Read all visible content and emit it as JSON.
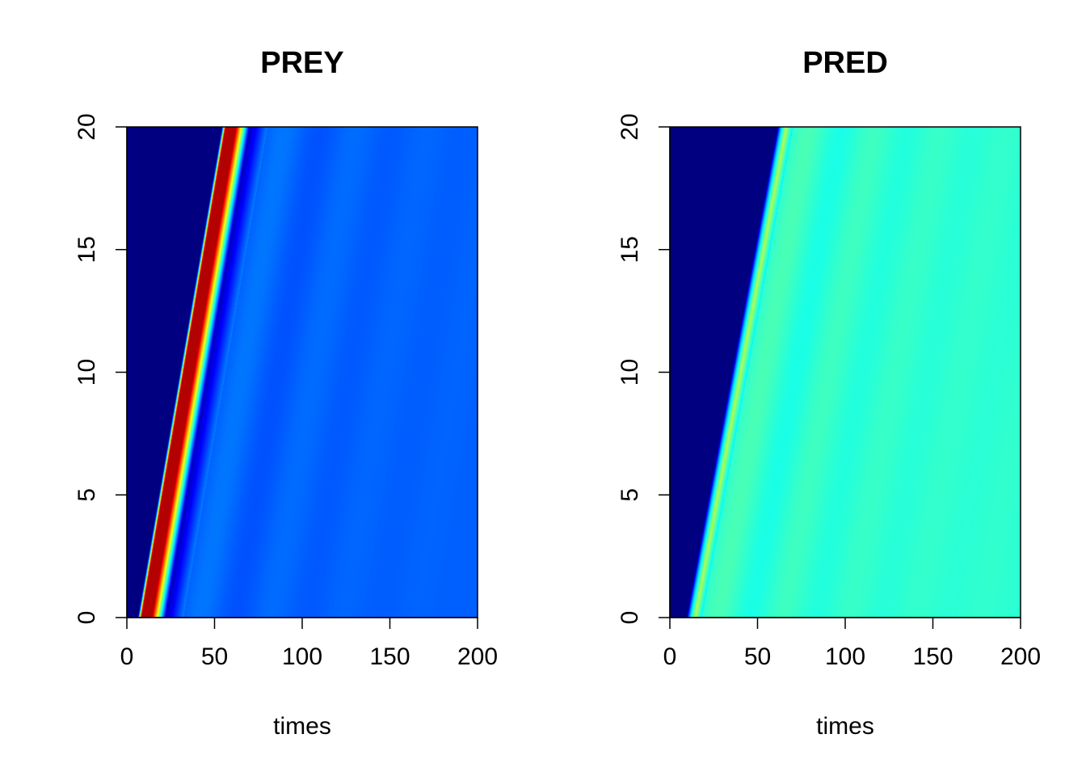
{
  "chart_data": [
    {
      "type": "heatmap",
      "title": "PREY",
      "xlabel": "times",
      "ylabel": "",
      "xlim": [
        0,
        200
      ],
      "ylim": [
        0,
        20
      ],
      "x_ticks": [
        0,
        50,
        100,
        150,
        200
      ],
      "y_ticks": [
        0,
        5,
        10,
        15,
        20
      ],
      "colormap": "jet",
      "front": {
        "x_at_y0": 6,
        "x_at_y20": 54
      },
      "background_level": 0.0,
      "peak_level": 0.95,
      "equilibrium_level": 0.22
    },
    {
      "type": "heatmap",
      "title": "PRED",
      "xlabel": "times",
      "ylabel": "",
      "xlim": [
        0,
        200
      ],
      "ylim": [
        0,
        20
      ],
      "x_ticks": [
        0,
        50,
        100,
        150,
        200
      ],
      "y_ticks": [
        0,
        5,
        10,
        15,
        20
      ],
      "colormap": "jet",
      "front": {
        "x_at_y0": 9,
        "x_at_y20": 61
      },
      "background_level": 0.0,
      "peak_level": 0.55,
      "equilibrium_level": 0.42
    }
  ]
}
